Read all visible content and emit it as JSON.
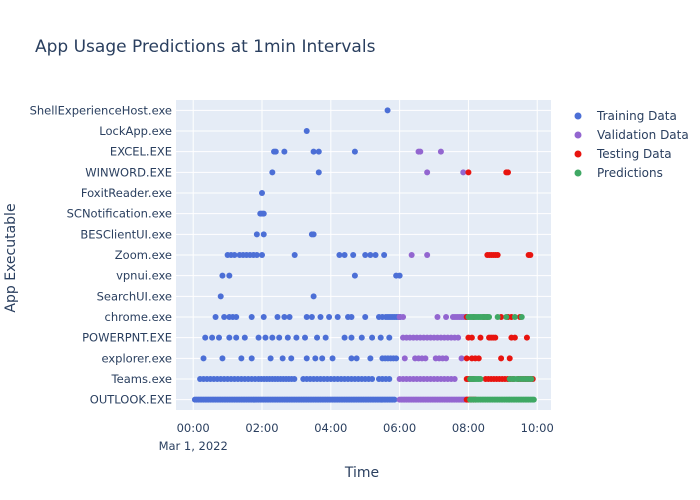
{
  "chart_data": {
    "type": "scatter",
    "title": "App Usage Predictions at 1min Intervals",
    "xlabel": "Time",
    "ylabel": "App Executable",
    "x_ticks": [
      "00:00",
      "02:00",
      "04:00",
      "06:00",
      "08:00",
      "10:00"
    ],
    "x_tick_values_hours": [
      0,
      2,
      4,
      6,
      8,
      10
    ],
    "x_date_label": "Mar 1, 2022",
    "xlim_hours": [
      -0.5,
      10.4
    ],
    "categories": [
      "OUTLOOK.EXE",
      "Teams.exe",
      "explorer.exe",
      "POWERPNT.EXE",
      "chrome.exe",
      "SearchUI.exe",
      "vpnui.exe",
      "Zoom.exe",
      "BESClientUI.exe",
      "SCNotification.exe",
      "FoxitReader.exe",
      "WINWORD.EXE",
      "EXCEL.EXE",
      "LockApp.exe",
      "ShellExperienceHost.exe"
    ],
    "grid": true,
    "legend_position": "top-right",
    "colors": {
      "plot_bg": "#e5ecf6",
      "Training Data": "#4c6fd6",
      "Validation Data": "#9366d0",
      "Testing Data": "#e8140f",
      "Predictions": "#3fa864"
    },
    "series": [
      {
        "name": "Training Data",
        "segments": [
          [
            "OUTLOOK.EXE",
            0.05,
            5.85,
            0.05
          ],
          [
            "Teams.exe",
            0.2,
            1.8,
            0.1
          ],
          [
            "Teams.exe",
            1.9,
            3.0,
            0.08
          ],
          [
            "Teams.exe",
            3.2,
            4.0,
            0.1
          ],
          [
            "Teams.exe",
            4.1,
            5.2,
            0.1
          ],
          [
            "Teams.exe",
            5.4,
            5.7,
            0.1
          ],
          [
            "chrome.exe",
            5.6,
            6.05,
            0.06
          ],
          [
            "chrome.exe",
            1.05,
            1.3,
            0.1
          ],
          [
            "explorer.exe",
            5.5,
            5.9,
            0.08
          ]
        ],
        "points": [
          [
            "ShellExperienceHost.exe",
            5.65
          ],
          [
            "LockApp.exe",
            3.3
          ],
          [
            "EXCEL.EXE",
            2.35
          ],
          [
            "EXCEL.EXE",
            2.4
          ],
          [
            "EXCEL.EXE",
            2.65
          ],
          [
            "EXCEL.EXE",
            3.5
          ],
          [
            "EXCEL.EXE",
            3.65
          ],
          [
            "EXCEL.EXE",
            4.7
          ],
          [
            "WINWORD.EXE",
            2.3
          ],
          [
            "WINWORD.EXE",
            3.65
          ],
          [
            "FoxitReader.exe",
            2.0
          ],
          [
            "SCNotification.exe",
            1.95
          ],
          [
            "SCNotification.exe",
            2.0
          ],
          [
            "SCNotification.exe",
            2.05
          ],
          [
            "BESClientUI.exe",
            1.85
          ],
          [
            "BESClientUI.exe",
            2.05
          ],
          [
            "BESClientUI.exe",
            3.45
          ],
          [
            "BESClientUI.exe",
            3.5
          ],
          [
            "Zoom.exe",
            1.0
          ],
          [
            "Zoom.exe",
            1.1
          ],
          [
            "Zoom.exe",
            1.2
          ],
          [
            "Zoom.exe",
            1.35
          ],
          [
            "Zoom.exe",
            1.45
          ],
          [
            "Zoom.exe",
            1.55
          ],
          [
            "Zoom.exe",
            1.65
          ],
          [
            "Zoom.exe",
            1.75
          ],
          [
            "Zoom.exe",
            1.85
          ],
          [
            "Zoom.exe",
            2.0
          ],
          [
            "Zoom.exe",
            2.95
          ],
          [
            "Zoom.exe",
            4.25
          ],
          [
            "Zoom.exe",
            4.4
          ],
          [
            "Zoom.exe",
            4.65
          ],
          [
            "Zoom.exe",
            5.0
          ],
          [
            "Zoom.exe",
            5.15
          ],
          [
            "Zoom.exe",
            5.3
          ],
          [
            "Zoom.exe",
            5.55
          ],
          [
            "vpnui.exe",
            0.85
          ],
          [
            "vpnui.exe",
            1.05
          ],
          [
            "vpnui.exe",
            4.7
          ],
          [
            "vpnui.exe",
            5.9
          ],
          [
            "vpnui.exe",
            6.0
          ],
          [
            "SearchUI.exe",
            0.8
          ],
          [
            "SearchUI.exe",
            3.5
          ],
          [
            "chrome.exe",
            0.65
          ],
          [
            "chrome.exe",
            0.9
          ],
          [
            "chrome.exe",
            1.7
          ],
          [
            "chrome.exe",
            2.05
          ],
          [
            "chrome.exe",
            2.45
          ],
          [
            "chrome.exe",
            2.65
          ],
          [
            "chrome.exe",
            2.8
          ],
          [
            "chrome.exe",
            3.3
          ],
          [
            "chrome.exe",
            3.45
          ],
          [
            "chrome.exe",
            3.7
          ],
          [
            "chrome.exe",
            3.95
          ],
          [
            "chrome.exe",
            4.2
          ],
          [
            "chrome.exe",
            4.5
          ],
          [
            "chrome.exe",
            4.6
          ],
          [
            "chrome.exe",
            5.0
          ],
          [
            "chrome.exe",
            5.4
          ],
          [
            "chrome.exe",
            5.5
          ],
          [
            "POWERPNT.EXE",
            0.35
          ],
          [
            "POWERPNT.EXE",
            0.55
          ],
          [
            "POWERPNT.EXE",
            0.75
          ],
          [
            "POWERPNT.EXE",
            1.05
          ],
          [
            "POWERPNT.EXE",
            1.25
          ],
          [
            "POWERPNT.EXE",
            1.5
          ],
          [
            "POWERPNT.EXE",
            1.9
          ],
          [
            "POWERPNT.EXE",
            2.1
          ],
          [
            "POWERPNT.EXE",
            2.3
          ],
          [
            "POWERPNT.EXE",
            2.5
          ],
          [
            "POWERPNT.EXE",
            2.75
          ],
          [
            "POWERPNT.EXE",
            3.0
          ],
          [
            "POWERPNT.EXE",
            3.25
          ],
          [
            "POWERPNT.EXE",
            3.6
          ],
          [
            "POWERPNT.EXE",
            3.85
          ],
          [
            "POWERPNT.EXE",
            4.4
          ],
          [
            "POWERPNT.EXE",
            4.6
          ],
          [
            "POWERPNT.EXE",
            4.9
          ],
          [
            "POWERPNT.EXE",
            5.2
          ],
          [
            "POWERPNT.EXE",
            5.45
          ],
          [
            "POWERPNT.EXE",
            5.7
          ],
          [
            "explorer.exe",
            0.3
          ],
          [
            "explorer.exe",
            0.85
          ],
          [
            "explorer.exe",
            1.4
          ],
          [
            "explorer.exe",
            1.7
          ],
          [
            "explorer.exe",
            2.25
          ],
          [
            "explorer.exe",
            2.6
          ],
          [
            "explorer.exe",
            2.85
          ],
          [
            "explorer.exe",
            3.3
          ],
          [
            "explorer.exe",
            3.55
          ],
          [
            "explorer.exe",
            3.75
          ],
          [
            "explorer.exe",
            4.05
          ],
          [
            "explorer.exe",
            4.6
          ],
          [
            "explorer.exe",
            4.75
          ],
          [
            "explorer.exe",
            5.15
          ]
        ]
      },
      {
        "name": "Validation Data",
        "segments": [
          [
            "OUTLOOK.EXE",
            6.0,
            7.95,
            0.05
          ],
          [
            "Teams.exe",
            6.0,
            7.65,
            0.1
          ],
          [
            "POWERPNT.EXE",
            6.1,
            7.75,
            0.1
          ],
          [
            "explorer.exe",
            6.45,
            6.75,
            0.1
          ],
          [
            "explorer.exe",
            7.05,
            7.35,
            0.1
          ],
          [
            "chrome.exe",
            7.55,
            7.95,
            0.06
          ]
        ],
        "points": [
          [
            "EXCEL.EXE",
            6.55
          ],
          [
            "EXCEL.EXE",
            6.6
          ],
          [
            "EXCEL.EXE",
            7.2
          ],
          [
            "WINWORD.EXE",
            6.8
          ],
          [
            "WINWORD.EXE",
            7.85
          ],
          [
            "Zoom.exe",
            6.35
          ],
          [
            "Zoom.exe",
            6.8
          ],
          [
            "chrome.exe",
            6.0
          ],
          [
            "chrome.exe",
            6.1
          ],
          [
            "chrome.exe",
            7.1
          ],
          [
            "chrome.exe",
            7.35
          ],
          [
            "explorer.exe",
            6.15
          ],
          [
            "explorer.exe",
            7.8
          ]
        ]
      },
      {
        "name": "Testing Data",
        "segments": [
          [
            "OUTLOOK.EXE",
            7.95,
            8.2,
            0.05
          ],
          [
            "Teams.exe",
            7.95,
            8.15,
            0.05
          ],
          [
            "Teams.exe",
            8.5,
            9.3,
            0.08
          ],
          [
            "Teams.exe",
            9.45,
            9.9,
            0.07
          ],
          [
            "Zoom.exe",
            8.55,
            8.85,
            0.06
          ],
          [
            "POWERPNT.EXE",
            8.6,
            8.8,
            0.06
          ]
        ],
        "points": [
          [
            "WINWORD.EXE",
            8.0
          ],
          [
            "WINWORD.EXE",
            9.1
          ],
          [
            "WINWORD.EXE",
            9.15
          ],
          [
            "Zoom.exe",
            9.75
          ],
          [
            "Zoom.exe",
            9.8
          ],
          [
            "chrome.exe",
            7.95
          ],
          [
            "chrome.exe",
            8.15
          ],
          [
            "chrome.exe",
            8.45
          ],
          [
            "chrome.exe",
            8.55
          ],
          [
            "chrome.exe",
            8.95
          ],
          [
            "chrome.exe",
            9.15
          ],
          [
            "chrome.exe",
            9.25
          ],
          [
            "chrome.exe",
            9.5
          ],
          [
            "POWERPNT.EXE",
            8.0
          ],
          [
            "POWERPNT.EXE",
            8.1
          ],
          [
            "POWERPNT.EXE",
            8.35
          ],
          [
            "POWERPNT.EXE",
            9.25
          ],
          [
            "POWERPNT.EXE",
            9.35
          ],
          [
            "POWERPNT.EXE",
            9.7
          ],
          [
            "explorer.exe",
            7.95
          ],
          [
            "explorer.exe",
            8.1
          ],
          [
            "explorer.exe",
            8.2
          ],
          [
            "explorer.exe",
            8.3
          ],
          [
            "explorer.exe",
            8.95
          ],
          [
            "explorer.exe",
            9.2
          ]
        ]
      },
      {
        "name": "Predictions",
        "segments": [
          [
            "OUTLOOK.EXE",
            8.05,
            9.9,
            0.05
          ],
          [
            "Teams.exe",
            8.05,
            8.35,
            0.05
          ],
          [
            "Teams.exe",
            9.2,
            9.85,
            0.07
          ],
          [
            "chrome.exe",
            8.0,
            8.6,
            0.05
          ]
        ],
        "points": [
          [
            "chrome.exe",
            8.85
          ],
          [
            "chrome.exe",
            9.1
          ],
          [
            "chrome.exe",
            9.35
          ],
          [
            "chrome.exe",
            9.55
          ]
        ]
      }
    ]
  }
}
